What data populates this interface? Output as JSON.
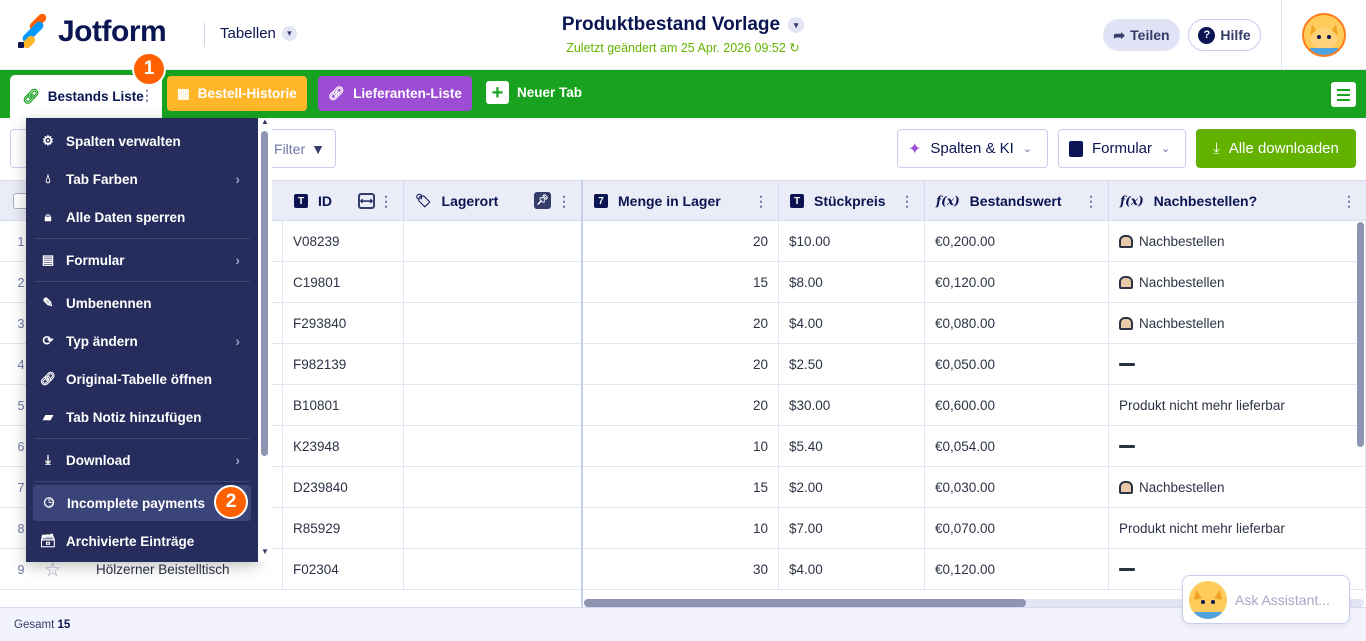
{
  "header": {
    "logo_text": "Jotform",
    "tables_label": "Tabellen",
    "title": "Produktbestand Vorlage",
    "subtitle": "Zuletzt geändert am 25 Apr. 2026 09:52",
    "share_label": "Teilen",
    "help_label": "Hilfe",
    "help_icon": "?"
  },
  "tabs": {
    "active_label": "Bestands Liste",
    "tab2_label": "Bestell-Historie",
    "tab3_label": "Lieferanten-Liste",
    "new_tab_label": "Neuer Tab",
    "badge1": "1",
    "badge2": "2"
  },
  "toolbar": {
    "filter_label": "Filter",
    "columns_ai_label": "Spalten & KI",
    "form_label": "Formular",
    "download_all_label": "Alle downloaden"
  },
  "columns": [
    "ID",
    "Lagerort",
    "Menge in Lager",
    "Stückpreis",
    "Bestandswert",
    "Nachbestellen?"
  ],
  "rows": [
    {
      "n": "1",
      "name": "",
      "id": "V08239",
      "qty": "20",
      "price": "$10.00",
      "value": "€0,200.00",
      "reorder": "Nachbestellen",
      "kind": "bell"
    },
    {
      "n": "2",
      "name": "",
      "id": "C19801",
      "qty": "15",
      "price": "$8.00",
      "value": "€0,120.00",
      "reorder": "Nachbestellen",
      "kind": "bell"
    },
    {
      "n": "3",
      "name": "",
      "id": "F293840",
      "qty": "20",
      "price": "$4.00",
      "value": "€0,080.00",
      "reorder": "Nachbestellen",
      "kind": "bell"
    },
    {
      "n": "4",
      "name": "",
      "id": "F982139",
      "qty": "20",
      "price": "$2.50",
      "value": "€0,050.00",
      "reorder": "",
      "kind": "dash"
    },
    {
      "n": "5",
      "name": "",
      "id": "B10801",
      "qty": "20",
      "price": "$30.00",
      "value": "€0,600.00",
      "reorder": "Produkt nicht mehr lieferbar",
      "kind": "text"
    },
    {
      "n": "6",
      "name": "",
      "id": "K23948",
      "qty": "10",
      "price": "$5.40",
      "value": "€0,054.00",
      "reorder": "",
      "kind": "dash"
    },
    {
      "n": "7",
      "name": "",
      "id": "D239840",
      "qty": "15",
      "price": "$2.00",
      "value": "€0,030.00",
      "reorder": "Nachbestellen",
      "kind": "bell"
    },
    {
      "n": "8",
      "name": "",
      "id": "R85929",
      "qty": "10",
      "price": "$7.00",
      "value": "€0,070.00",
      "reorder": "Produkt nicht mehr lieferbar",
      "kind": "text"
    },
    {
      "n": "9",
      "name": "Hölzerner Beistelltisch",
      "id": "F02304",
      "qty": "30",
      "price": "$4.00",
      "value": "€0,120.00",
      "reorder": "",
      "kind": "dash"
    }
  ],
  "footer": {
    "total_label": "Gesamt",
    "total_value": "15"
  },
  "assistant": {
    "placeholder": "Ask Assistant..."
  },
  "context_menu": [
    "Spalten verwalten",
    "Tab Farben",
    "Alle Daten sperren",
    "Formular",
    "Umbenennen",
    "Typ ändern",
    "Original-Tabelle öffnen",
    "Tab Notiz hinzufügen",
    "Download",
    "Incomplete payments",
    "Archivierte Einträge"
  ],
  "colors": {
    "brand_green": "#18a21f",
    "accent_orange": "#ff6100",
    "menu_bg": "#262d5c",
    "tab_orange": "#ffb629",
    "tab_purple": "#9c4dd3",
    "download_green": "#64b200"
  }
}
